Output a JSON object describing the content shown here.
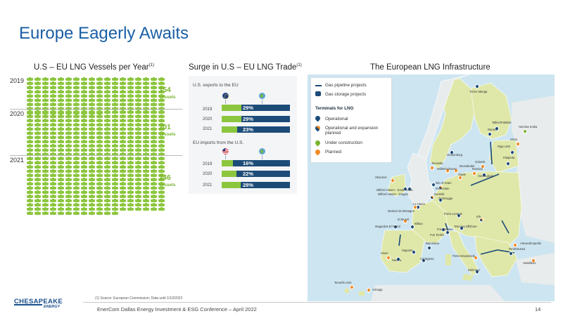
{
  "slide": {
    "title": "Europe Eagerly Awaits"
  },
  "panels": {
    "vessels_title": "U.S – EU LNG Vessels per Year",
    "vessels_title_sup": "(1)",
    "trade_title": "Surge in U.S – EU LNG Trade",
    "trade_title_sup": "(1)",
    "map_title": "The European LNG Infrastructure"
  },
  "vessels": {
    "years": [
      {
        "year": "2019",
        "count": "154",
        "unit": "vessels"
      },
      {
        "year": "2020",
        "count": "201",
        "unit": "vessels"
      },
      {
        "year": "2021",
        "count": "246",
        "unit": "vessels"
      }
    ],
    "accent": "#8cc63f"
  },
  "trade": {
    "exports_label": "U.S. exports to the EU",
    "imports_label": "EU imports from the U.S.",
    "exports": [
      {
        "year": "2019",
        "pct": "29%",
        "share": 0.29
      },
      {
        "year": "2020",
        "pct": "29%",
        "share": 0.29
      },
      {
        "year": "2021",
        "pct": "23%",
        "share": 0.23
      }
    ],
    "imports": [
      {
        "year": "2019",
        "pct": "16%",
        "share": 0.16
      },
      {
        "year": "2020",
        "pct": "22%",
        "share": 0.22
      },
      {
        "year": "2021",
        "pct": "28%",
        "share": 0.28
      }
    ],
    "colors": {
      "bar": "#1c4b78",
      "fill": "#8cc63f"
    }
  },
  "map": {
    "legend": {
      "pipeline": "Gas pipeline projects",
      "storage": "Gas storage projects",
      "terminals_heading": "Terminals for LNG",
      "operational": "Operational",
      "operational_expansion": "Operational and expansion planned",
      "under_construction": "Under construction",
      "planned": "Planned"
    },
    "colors": {
      "sea": "#cde5f1",
      "land_eu": "#dfe8a9",
      "land_other": "#e9ecec",
      "operational": "#1c4b78",
      "under_construction": "#7ab32e",
      "planned": "#f08a24"
    },
    "labels": [
      "Tornio Manga",
      "Tallinn/Paldiski",
      "Rauma",
      "Hamina Kotka",
      "Inkoo",
      "Riga LNG",
      "Klaipeda",
      "Gothenburg",
      "Teesside",
      "Wilhelmshaven",
      "Brunsbuttel",
      "Stade",
      "Rostock",
      "Swinoujscie",
      "Shannon",
      "Isle of Grain",
      "Rotterdam",
      "Milford Haven - South Hook",
      "Milford Haven - Dragon",
      "Dunkirk",
      "Zeebrugge",
      "Montoir de Bretagne",
      "Mugardos El Ferrol",
      "El Musel",
      "Bilbao",
      "Porto Levante",
      "Krk",
      "Fos Cavaou",
      "Fos Tonkin",
      "Toscana Offshore",
      "Sagunto",
      "Barcelona",
      "Sines",
      "Cartagena",
      "Huelva",
      "Porto Empedocle",
      "Delimara",
      "Alexandroupolis",
      "Revithoussa",
      "Vassilikos",
      "Tenerife LNG",
      "Arinaga",
      "Le Havre",
      "Gdansk"
    ]
  },
  "footer": {
    "footnote": "(1)  Source: European Commission; Data until 1/10/2022",
    "event": "EnerCom Dallas Energy Investment & ESG Conference – April 2022",
    "page": "14",
    "logo_word": "CHESAPEAKE",
    "logo_sub": "ENERGY"
  }
}
